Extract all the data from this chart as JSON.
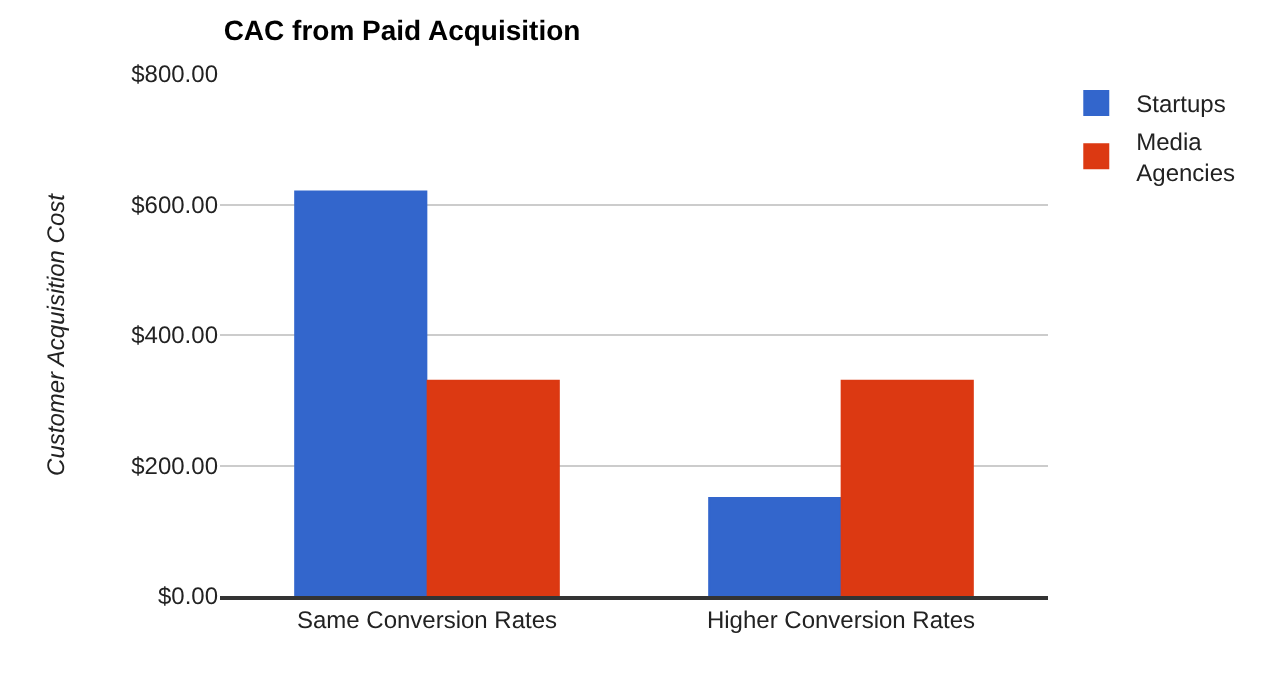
{
  "chart_data": {
    "type": "bar",
    "title": "CAC from Paid Acquisition",
    "ylabel": "Customer Acquisition Cost",
    "categories": [
      "Same Conversion Rates",
      "Higher Conversion Rates"
    ],
    "series": [
      {
        "name": "Startups",
        "color": "#3366cc",
        "values": [
          620,
          150
        ]
      },
      {
        "name": "Media Agencies",
        "color": "#dc3912",
        "values": [
          330,
          330
        ]
      }
    ],
    "ylim": [
      0,
      800
    ],
    "yticks": [
      {
        "value": 0,
        "label": "$0.00"
      },
      {
        "value": 200,
        "label": "$200.00"
      },
      {
        "value": 400,
        "label": "$400.00"
      },
      {
        "value": 600,
        "label": "$600.00"
      },
      {
        "value": 800,
        "label": "$800.00"
      }
    ],
    "grid": "y",
    "legend": "top right"
  }
}
